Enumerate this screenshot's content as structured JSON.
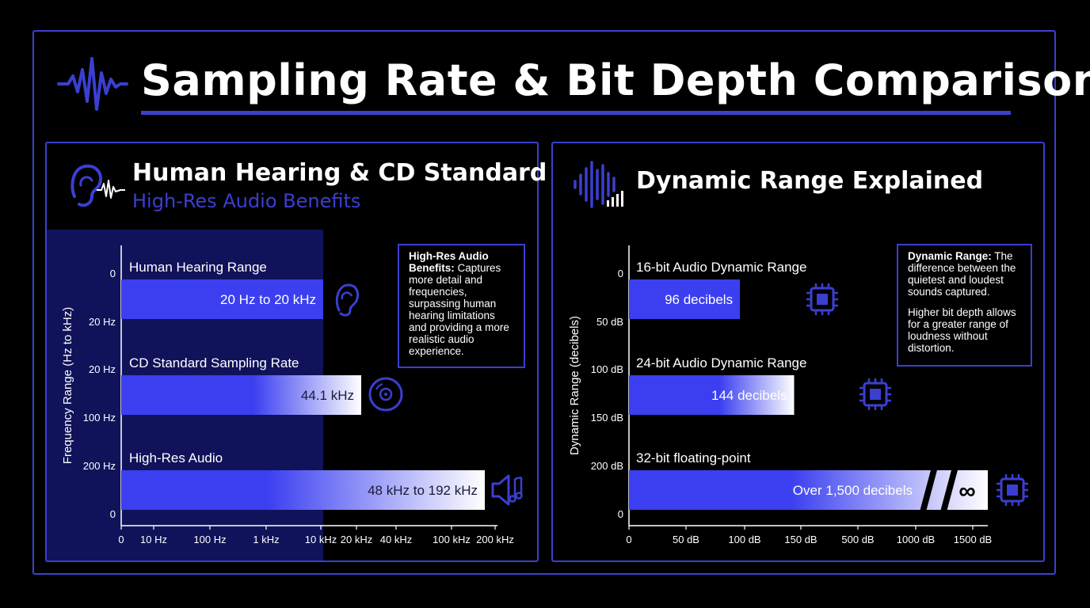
{
  "header": {
    "title": "Sampling Rate & Bit Depth Comparison",
    "icon": "waveform-icon"
  },
  "colors": {
    "accent": "#3b3fd0",
    "bar": "#3b3ff0",
    "background": "#000000",
    "shade": "#10135a"
  },
  "left_panel": {
    "title": "Human Hearing & CD Standard",
    "subtitle": "High-Res Audio Benefits",
    "icon": "ear-wave-icon",
    "callout": {
      "heading": "High-Res Audio Benefits:",
      "text": "Captures more detail and frequencies, surpassing human hearing limitations and providing a more realistic audio experience."
    }
  },
  "right_panel": {
    "title": "Dynamic Range Explained",
    "icon": "signal-bars-icon",
    "callout": {
      "heading": "Dynamic Range:",
      "text": "The difference between the quietest and loudest sounds captured.",
      "text2": "Higher bit depth allows for a greater range of loudness without distortion."
    }
  },
  "chart_data": [
    {
      "type": "bar",
      "orientation": "horizontal",
      "ylabel": "Frequency Range (Hz to kHz)",
      "xlabel": "",
      "x_ticks": [
        "0",
        "10 Hz",
        "100 Hz",
        "1 kHz",
        "10 kHz",
        "20 kHz",
        "40 kHz",
        "100 kHz",
        "200 kHz"
      ],
      "y_ticks": [
        "0",
        "20 Hz",
        "20 Hz",
        "100 Hz",
        "200 Hz",
        "0"
      ],
      "categories": [
        "Human Hearing Range",
        "CD Standard Sampling Rate",
        "High-Res Audio"
      ],
      "value_labels": [
        "20 Hz to 20 kHz",
        "44.1 kHz",
        "48 kHz to 192 kHz"
      ],
      "values_khz": [
        20,
        44.1,
        192
      ],
      "icons": [
        "ear-icon",
        "disc-icon",
        "speaker-music-icon"
      ]
    },
    {
      "type": "bar",
      "orientation": "horizontal",
      "ylabel": "Dynamic Range (decibels)",
      "xlabel": "",
      "x_ticks": [
        "0",
        "50 dB",
        "100 dB",
        "150 dB",
        "500 dB",
        "1000 dB",
        "1500 dB"
      ],
      "y_ticks": [
        "0",
        "50 dB",
        "100 dB",
        "150 dB",
        "200 dB",
        "0"
      ],
      "categories": [
        "16-bit Audio Dynamic Range",
        "24-bit Audio Dynamic Range",
        "32-bit floating-point"
      ],
      "value_labels": [
        "96 decibels",
        "144 decibels",
        "Over 1,500 decibels"
      ],
      "values_db": [
        96,
        144,
        1500
      ],
      "overflow_symbol": "∞",
      "icons": [
        "chip-icon",
        "chip-icon",
        "chip-icon"
      ]
    }
  ]
}
